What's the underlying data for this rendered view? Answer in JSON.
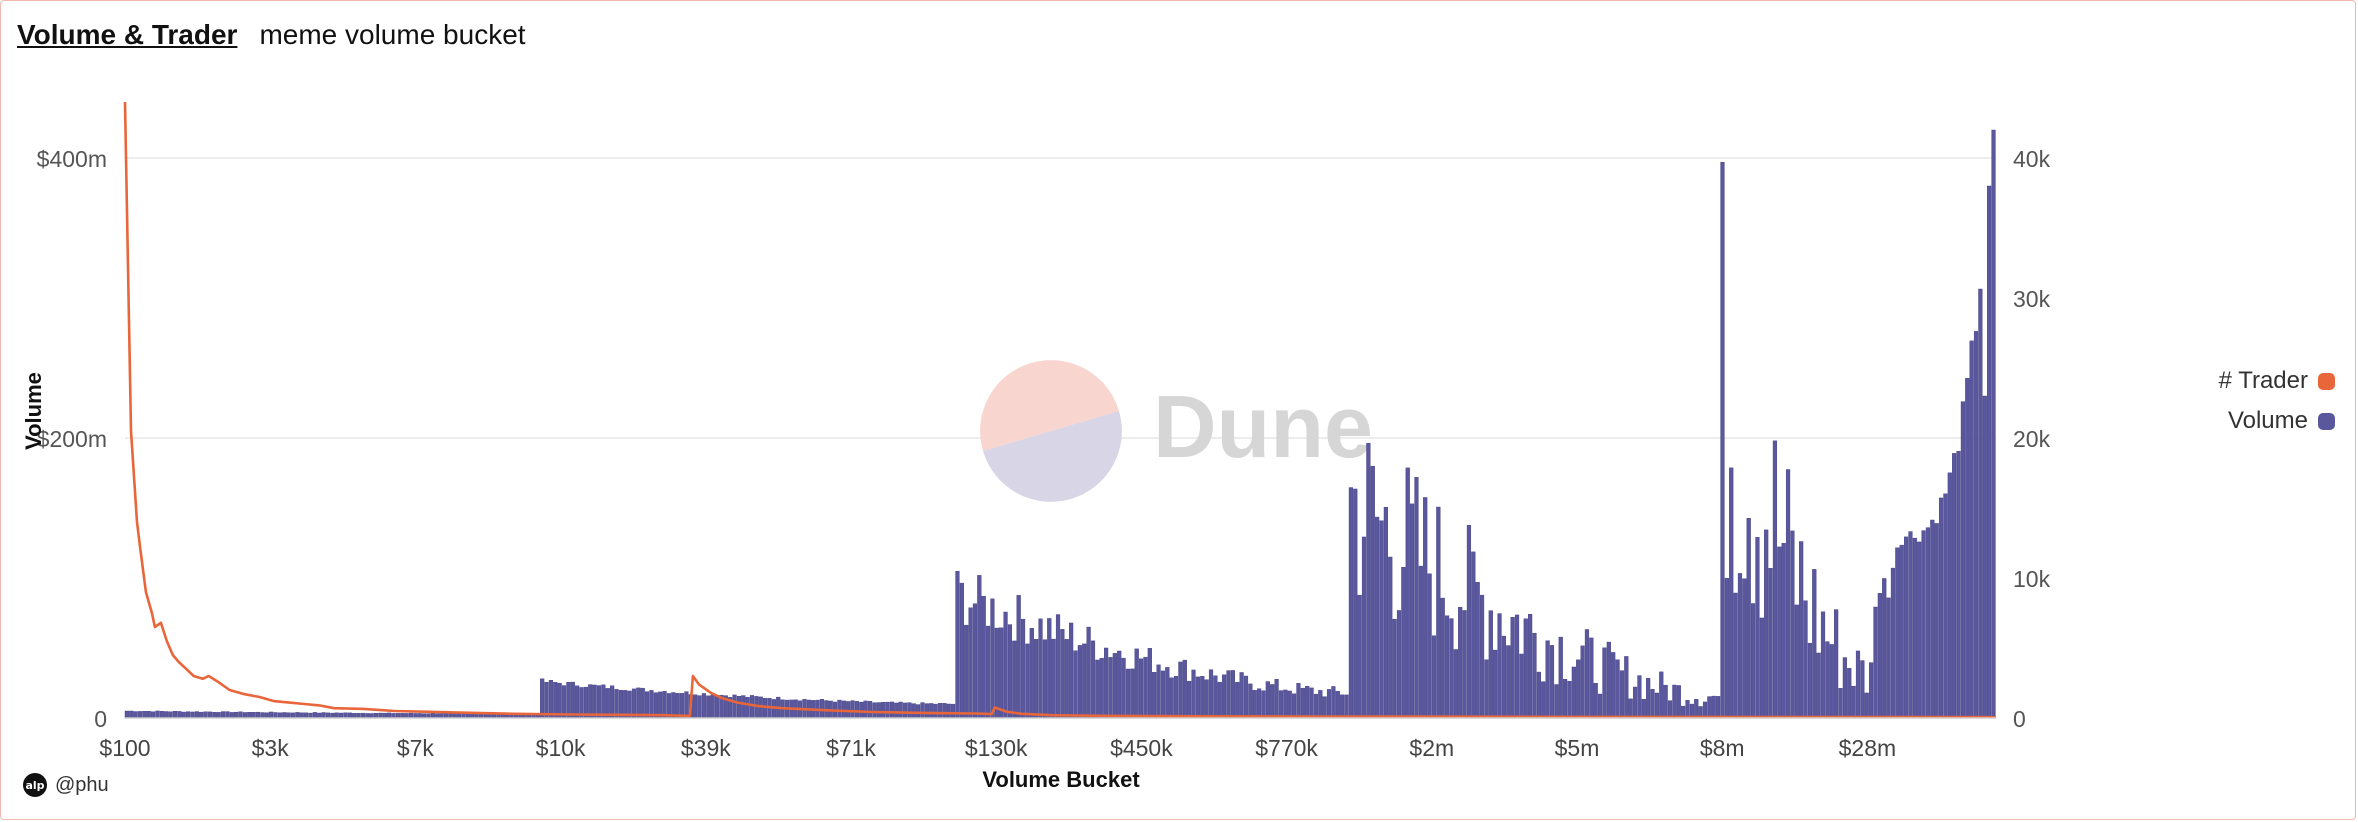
{
  "header": {
    "title": "Volume & Trader",
    "subtitle": "meme volume bucket"
  },
  "watermark": {
    "text": "Dune",
    "circle_top_color": "#f9d5cf",
    "circle_bottom_color": "#d8d5e6",
    "text_color": "#d6d6d6"
  },
  "author": {
    "icon_text": "alp",
    "handle": "@phu"
  },
  "legend": [
    {
      "label": "# Trader",
      "color": "#e8663a"
    },
    {
      "label": "Volume",
      "color": "#5a579d"
    }
  ],
  "chart_data": {
    "type": "bar",
    "title": "Volume & Trader",
    "xlabel": "Volume Bucket",
    "ylabel": "Volume",
    "x_tick_labels": [
      "$100",
      "$3k",
      "$7k",
      "$10k",
      "$39k",
      "$71k",
      "$130k",
      "$450k",
      "$770k",
      "$2m",
      "$5m",
      "$8m",
      "$28m"
    ],
    "y_left": {
      "label": "Volume",
      "range": [
        0,
        400000000
      ],
      "ticks": [
        "0",
        "$200m",
        "$400m"
      ],
      "tick_values": [
        0,
        200000000,
        400000000
      ]
    },
    "y_right": {
      "range": [
        0,
        40000
      ],
      "ticks": [
        "0",
        "10k",
        "20k",
        "30k",
        "40k"
      ],
      "tick_values": [
        0,
        10000,
        20000,
        30000,
        40000
      ]
    },
    "grid": true,
    "legend_position": "right",
    "series": [
      {
        "name": "Volume",
        "type": "bar",
        "axis": "right",
        "color": "#5a579d",
        "segments": [
          {
            "bars": 95,
            "start": 500,
            "end": 300,
            "noise": 0.08
          },
          {
            "bars": 95,
            "start": 2600,
            "end": 1000,
            "noise": 0.08
          },
          {
            "bars": 90,
            "start": 8800,
            "end": 1800,
            "noise": 0.25
          },
          {
            "bars": 85,
            "start": 15500,
            "end": 1500,
            "noise": 0.55
          },
          {
            "bars": 35,
            "start": 24500,
            "end": 3000,
            "noise": 0.7
          },
          {
            "bars": 6,
            "start": 9000,
            "end": 13000,
            "noise": 0.15
          },
          {
            "bars": 22,
            "start": 13000,
            "end": 42000,
            "noise": 0.05
          }
        ],
        "max_value": 42000
      },
      {
        "name": "# Trader",
        "type": "line",
        "axis": "left",
        "color": "#e8663a",
        "points": [
          [
            0,
            440000000
          ],
          [
            2,
            205000000
          ],
          [
            4,
            140000000
          ],
          [
            5,
            123000000
          ],
          [
            7,
            90000000
          ],
          [
            9,
            75000000
          ],
          [
            10,
            65000000
          ],
          [
            12,
            68000000
          ],
          [
            14,
            55000000
          ],
          [
            16,
            45000000
          ],
          [
            18,
            40000000
          ],
          [
            20,
            36000000
          ],
          [
            23,
            30000000
          ],
          [
            26,
            28000000
          ],
          [
            28,
            30000000
          ],
          [
            31,
            26000000
          ],
          [
            35,
            20000000
          ],
          [
            40,
            17000000
          ],
          [
            45,
            15000000
          ],
          [
            50,
            12000000
          ],
          [
            55,
            11000000
          ],
          [
            60,
            10000000
          ],
          [
            65,
            9000000
          ],
          [
            70,
            7000000
          ],
          [
            80,
            6500000
          ],
          [
            90,
            5000000
          ],
          [
            100,
            4500000
          ],
          [
            110,
            4000000
          ],
          [
            130,
            3000000
          ],
          [
            150,
            2500000
          ],
          [
            170,
            2200000
          ],
          [
            180,
            2000000
          ],
          [
            189,
            1500000
          ],
          [
            190,
            30000000
          ],
          [
            192,
            24000000
          ],
          [
            196,
            18000000
          ],
          [
            200,
            14000000
          ],
          [
            205,
            11000000
          ],
          [
            212,
            8500000
          ],
          [
            220,
            7000000
          ],
          [
            235,
            5500000
          ],
          [
            250,
            4300000
          ],
          [
            270,
            3500000
          ],
          [
            285,
            3200000
          ],
          [
            290,
            2800000
          ],
          [
            291,
            7500000
          ],
          [
            295,
            4500000
          ],
          [
            300,
            3000000
          ],
          [
            310,
            2000000
          ],
          [
            330,
            1500000
          ],
          [
            360,
            1200000
          ],
          [
            400,
            1000000
          ],
          [
            430,
            1000000
          ],
          [
            500,
            800000
          ],
          [
            560,
            700000
          ],
          [
            626,
            600000
          ]
        ]
      }
    ]
  }
}
